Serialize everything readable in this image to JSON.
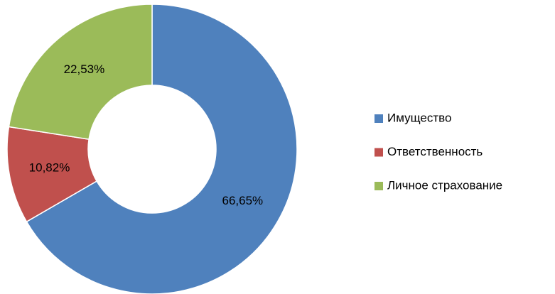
{
  "chart_data": {
    "type": "pie",
    "categories": [
      "Имущество",
      "Ответственность",
      "Личное страхование"
    ],
    "values": [
      66.65,
      10.82,
      22.53
    ],
    "value_labels": [
      "66,65%",
      "10,82%",
      "22,53%"
    ],
    "colors": [
      "#4f81bd",
      "#c0504d",
      "#9bbb59"
    ],
    "legend": "right"
  }
}
